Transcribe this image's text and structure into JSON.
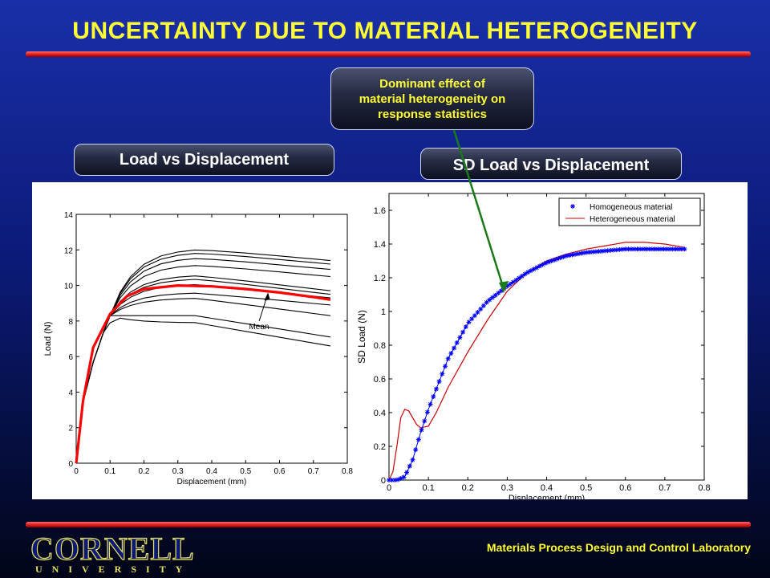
{
  "slide": {
    "title": "UNCERTAINTY DUE TO MATERIAL HETEROGENEITY",
    "callout": [
      "Dominant effect of",
      "material heterogeneity on",
      "response statistics"
    ],
    "left_label": "Load vs Displacement",
    "right_label": "SD Load vs Displacement",
    "footer": "Materials Process Design and Control Laboratory",
    "logo_word": "CORNELL",
    "logo_sub": "UNIVERSITY"
  },
  "colors": {
    "title": "#ffff33",
    "rule": "#d81818",
    "mean_curve": "#ff0000",
    "homogeneous": "#0000ff",
    "heterogeneous": "#cc0000",
    "arrow": "#1a7a1a"
  },
  "chart_data": [
    {
      "type": "line",
      "xlabel": "Displacement (mm)",
      "ylabel": "Load (N)",
      "xlim": [
        0,
        0.8
      ],
      "ylim": [
        0,
        14
      ],
      "xticks": [
        "0",
        "0.1",
        "0.2",
        "0.3",
        "0.4",
        "0.5",
        "0.6",
        "0.7",
        "0.8"
      ],
      "yticks": [
        "0",
        "2",
        "4",
        "6",
        "8",
        "10",
        "12",
        "14"
      ],
      "annotation": "Mean",
      "sample_peaks": [
        12.1,
        11.9,
        11.6,
        11.2,
        10.6,
        10.4,
        10.1,
        9.6,
        9.3,
        8.3,
        7.9
      ],
      "sample_ends": [
        11.4,
        11.2,
        10.9,
        10.5,
        9.7,
        9.5,
        9.3,
        8.9,
        8.3,
        7.1,
        6.6
      ],
      "series": [
        {
          "name": "Mean",
          "x": [
            0,
            0.02,
            0.05,
            0.1,
            0.15,
            0.2,
            0.3,
            0.4,
            0.5,
            0.6,
            0.7,
            0.75
          ],
          "values": [
            0,
            3.5,
            6.5,
            8.4,
            9.4,
            9.8,
            10.0,
            9.95,
            9.8,
            9.6,
            9.35,
            9.2
          ]
        }
      ]
    },
    {
      "type": "line",
      "xlabel": "Displacement (mm)",
      "ylabel": "SD Load (N)",
      "xlim": [
        0,
        0.8
      ],
      "ylim": [
        0,
        1.7
      ],
      "xticks": [
        "0",
        "0.1",
        "0.2",
        "0.3",
        "0.4",
        "0.5",
        "0.6",
        "0.7",
        "0.8"
      ],
      "yticks": [
        "0",
        "0.2",
        "0.4",
        "0.6",
        "0.8",
        "1",
        "1.2",
        "1.4",
        "1.6"
      ],
      "legend": "top-right",
      "series": [
        {
          "name": "Homogeneous material",
          "x": [
            0,
            0.02,
            0.04,
            0.06,
            0.08,
            0.1,
            0.15,
            0.2,
            0.25,
            0.3,
            0.35,
            0.4,
            0.45,
            0.5,
            0.55,
            0.6,
            0.65,
            0.7,
            0.75
          ],
          "values": [
            0,
            0.0,
            0.02,
            0.12,
            0.28,
            0.42,
            0.72,
            0.93,
            1.06,
            1.15,
            1.23,
            1.29,
            1.33,
            1.35,
            1.36,
            1.37,
            1.37,
            1.37,
            1.37
          ]
        },
        {
          "name": "Heterogeneous material",
          "x": [
            0,
            0.01,
            0.02,
            0.03,
            0.04,
            0.05,
            0.06,
            0.07,
            0.08,
            0.1,
            0.12,
            0.15,
            0.2,
            0.25,
            0.3,
            0.35,
            0.4,
            0.45,
            0.5,
            0.55,
            0.6,
            0.65,
            0.7,
            0.75
          ],
          "values": [
            0,
            0.05,
            0.2,
            0.37,
            0.42,
            0.41,
            0.37,
            0.33,
            0.31,
            0.32,
            0.4,
            0.55,
            0.76,
            0.95,
            1.12,
            1.23,
            1.3,
            1.34,
            1.37,
            1.39,
            1.41,
            1.41,
            1.4,
            1.38
          ]
        }
      ]
    }
  ]
}
